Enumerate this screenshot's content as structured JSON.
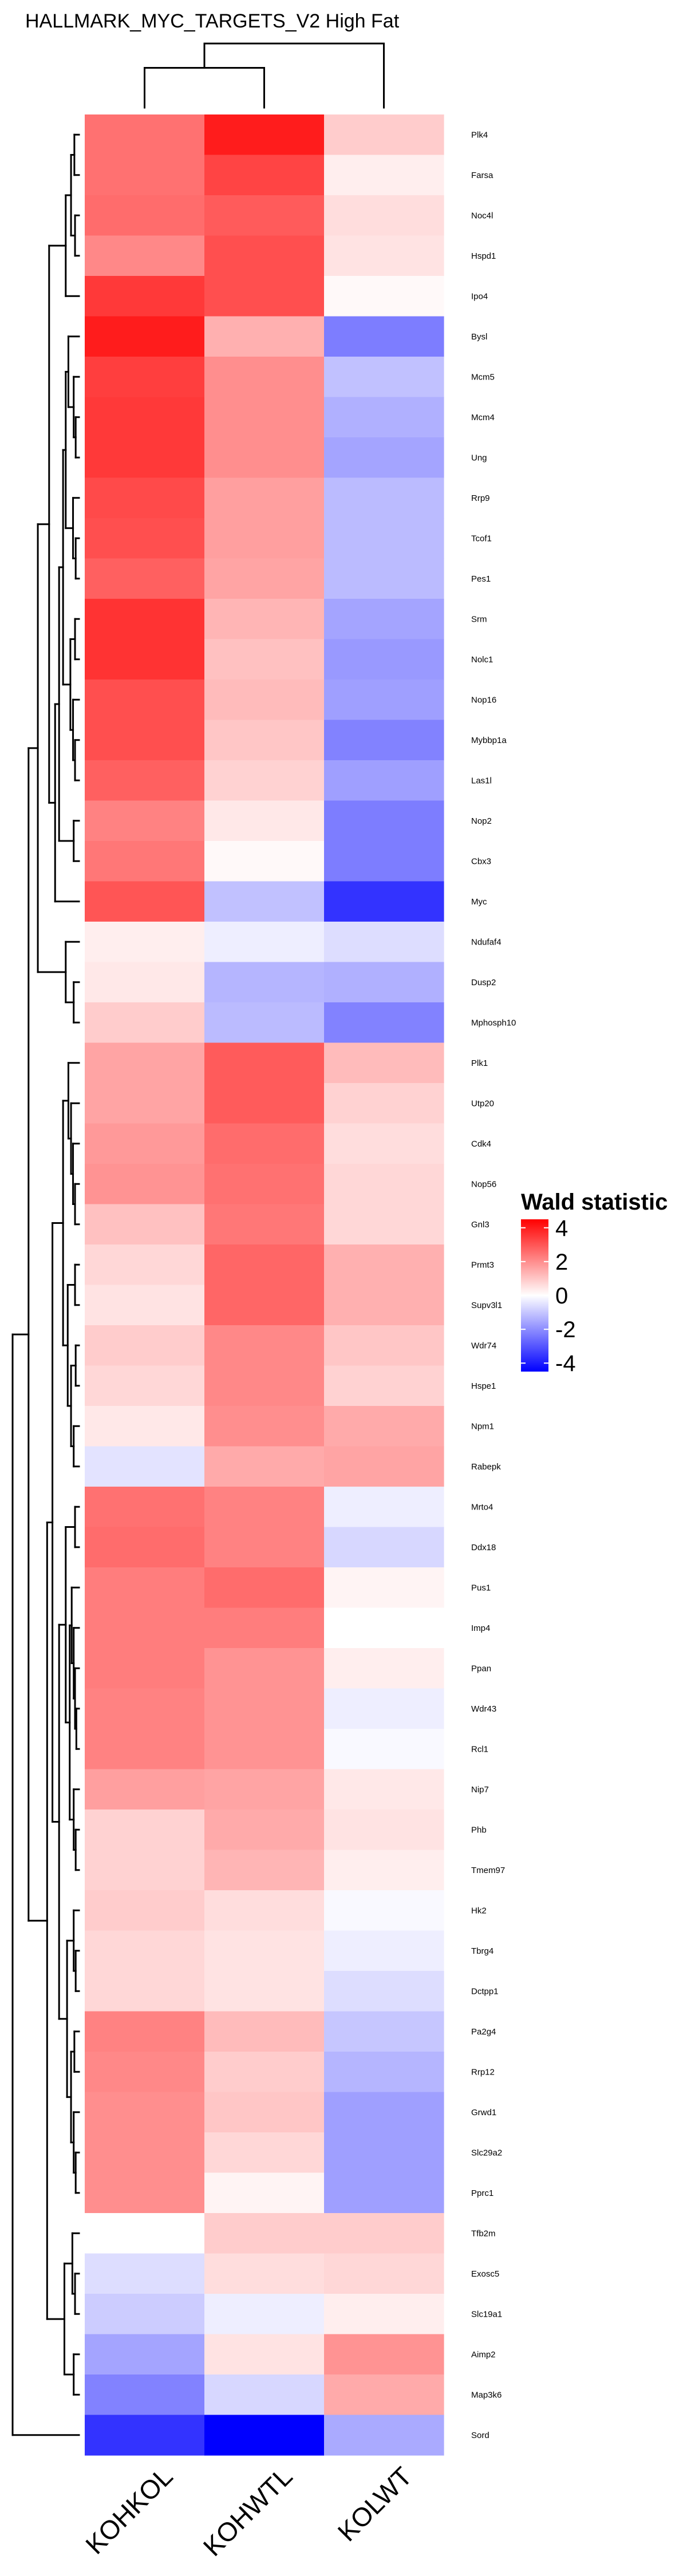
{
  "chart_data": {
    "type": "heatmap",
    "title": "HALLMARK_MYC_TARGETS_V2 High Fat",
    "columns": [
      "KOHKOL",
      "KOHWTL",
      "KOLWT"
    ],
    "rows": [
      "Plk4",
      "Farsa",
      "Noc4l",
      "Hspd1",
      "Ipo4",
      "Bysl",
      "Mcm5",
      "Mcm4",
      "Ung",
      "Rrp9",
      "Tcof1",
      "Pes1",
      "Srm",
      "Nolc1",
      "Nop16",
      "Mybbp1a",
      "Las1l",
      "Nop2",
      "Cbx3",
      "Myc",
      "Ndufaf4",
      "Dusp2",
      "Mphosph10",
      "Plk1",
      "Utp20",
      "Cdk4",
      "Nop56",
      "Gnl3",
      "Prmt3",
      "Supv3l1",
      "Wdr74",
      "Hspe1",
      "Npm1",
      "Rabepk",
      "Mrto4",
      "Ddx18",
      "Pus1",
      "Imp4",
      "Ppan",
      "Wdr43",
      "Rcl1",
      "Nip7",
      "Phb",
      "Tmem97",
      "Hk2",
      "Tbrg4",
      "Dctpp1",
      "Pa2g4",
      "Rrp12",
      "Grwd1",
      "Slc29a2",
      "Pprc1",
      "Tfb2m",
      "Exosc5",
      "Slc19a1",
      "Aimp2",
      "Map3k6",
      "Sord"
    ],
    "values": [
      [
        2.5,
        4.0,
        0.9
      ],
      [
        2.5,
        3.3,
        0.3
      ],
      [
        2.6,
        2.9,
        0.6
      ],
      [
        2.1,
        3.1,
        0.5
      ],
      [
        3.5,
        3.1,
        0.1
      ],
      [
        4.0,
        1.4,
        -2.3
      ],
      [
        3.4,
        2.0,
        -1.1
      ],
      [
        3.5,
        2.0,
        -1.4
      ],
      [
        3.5,
        2.0,
        -1.6
      ],
      [
        3.2,
        1.7,
        -1.2
      ],
      [
        3.1,
        1.7,
        -1.2
      ],
      [
        2.8,
        1.6,
        -1.2
      ],
      [
        3.6,
        1.3,
        -1.6
      ],
      [
        3.6,
        1.1,
        -1.8
      ],
      [
        3.1,
        1.2,
        -1.7
      ],
      [
        3.1,
        1.0,
        -2.2
      ],
      [
        2.8,
        0.8,
        -1.7
      ],
      [
        2.2,
        0.4,
        -2.3
      ],
      [
        2.4,
        0.1,
        -2.3
      ],
      [
        3.0,
        -1.1,
        -3.6
      ],
      [
        0.3,
        -0.3,
        -0.6
      ],
      [
        0.4,
        -1.3,
        -1.4
      ],
      [
        0.9,
        -1.2,
        -2.2
      ],
      [
        1.6,
        2.9,
        1.2
      ],
      [
        1.6,
        2.9,
        0.8
      ],
      [
        1.8,
        2.6,
        0.6
      ],
      [
        1.9,
        2.5,
        0.7
      ],
      [
        1.1,
        2.4,
        0.7
      ],
      [
        0.7,
        2.7,
        1.4
      ],
      [
        0.5,
        2.7,
        1.4
      ],
      [
        0.9,
        2.1,
        1.0
      ],
      [
        0.7,
        2.1,
        0.8
      ],
      [
        0.4,
        2.0,
        1.5
      ],
      [
        -0.5,
        1.5,
        1.6
      ],
      [
        2.5,
        2.2,
        -0.3
      ],
      [
        2.6,
        2.2,
        -0.7
      ],
      [
        2.3,
        2.6,
        0.2
      ],
      [
        2.3,
        2.3,
        0.0
      ],
      [
        2.3,
        1.9,
        0.3
      ],
      [
        2.2,
        1.9,
        -0.3
      ],
      [
        2.2,
        1.9,
        -0.1
      ],
      [
        1.7,
        1.6,
        0.4
      ],
      [
        0.8,
        1.5,
        0.5
      ],
      [
        0.8,
        1.3,
        0.3
      ],
      [
        0.9,
        0.6,
        -0.1
      ],
      [
        0.7,
        0.5,
        -0.3
      ],
      [
        0.7,
        0.5,
        -0.6
      ],
      [
        2.2,
        1.2,
        -1.0
      ],
      [
        2.1,
        0.9,
        -1.3
      ],
      [
        2.0,
        1.0,
        -1.7
      ],
      [
        2.0,
        0.7,
        -1.7
      ],
      [
        2.0,
        0.2,
        -1.7
      ],
      [
        0.0,
        0.9,
        0.9
      ],
      [
        -0.6,
        0.6,
        0.7
      ],
      [
        -0.9,
        -0.3,
        0.3
      ],
      [
        -1.6,
        0.5,
        1.9
      ],
      [
        -2.2,
        -0.7,
        1.5
      ],
      [
        -3.6,
        -4.5,
        -1.5
      ]
    ],
    "legend": {
      "title": "Wald statistic",
      "ticks": [
        4,
        2,
        0,
        -2,
        -4
      ],
      "range": [
        -4.5,
        4.5
      ],
      "placement": "right"
    },
    "colors": {
      "low": "#0000ff",
      "mid": "#ffffff",
      "high": "#ff0000"
    }
  }
}
